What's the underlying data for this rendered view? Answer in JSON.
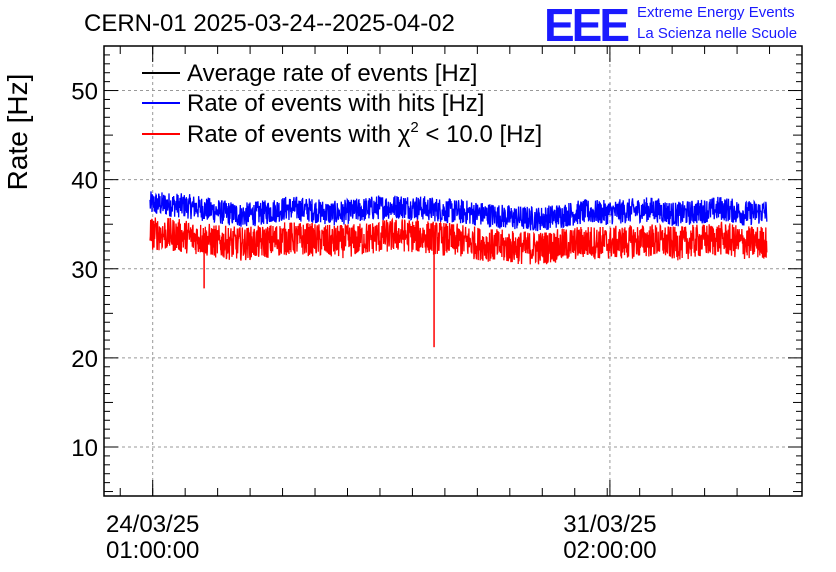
{
  "header": {
    "title": "CERN-01 2025-03-24--2025-04-02",
    "logo_text": "EEE",
    "org_line1": "Extreme Energy Events",
    "org_line2": "La Scienza nelle Scuole"
  },
  "chart_data": {
    "type": "line",
    "ylabel": "Rate [Hz]",
    "ylim": [
      4.5,
      55
    ],
    "xlim": [
      "2025-03-23 07:00",
      "2025-04-03 01:00"
    ],
    "grid": true,
    "yticks": [
      10,
      20,
      30,
      40,
      50
    ],
    "xticks": [
      {
        "date": "24/03/25",
        "time": "01:00:00"
      },
      {
        "date": "31/03/25",
        "time": "02:00:00"
      }
    ],
    "legend": {
      "placement": "top-left",
      "entries": [
        {
          "label": "Average rate of events [Hz]",
          "color": "#000000"
        },
        {
          "label": "Rate of events with hits [Hz]",
          "color": "#0000ff"
        },
        {
          "label_prefix": "Rate of events with ",
          "chi_symbol": "χ",
          "chi_sup": "2",
          "label_suffix": " < 10.0 [Hz]",
          "color": "#ff0000"
        }
      ]
    },
    "series": [
      {
        "name": "Rate of events with hits [Hz]",
        "color": "#0000ff",
        "x_range": [
          "2025-03-24 00:00",
          "2025-04-02 12:00"
        ],
        "trend": [
          37.3,
          37.2,
          36.9,
          36.4,
          36.0,
          36.3,
          36.8,
          36.6,
          36.2,
          36.5,
          36.9,
          37.0,
          36.8,
          36.5,
          36.3,
          36.0,
          35.7,
          35.6,
          36.0,
          36.4,
          36.3,
          36.5,
          36.7,
          36.1,
          36.4,
          36.8,
          36.2,
          36.4
        ],
        "noise_amplitude": 1.4
      },
      {
        "name": "Rate of events with χ2 < 10.0 [Hz]",
        "color": "#ff0000",
        "x_range": [
          "2025-03-24 00:00",
          "2025-04-02 12:00"
        ],
        "trend": [
          34.0,
          33.8,
          33.5,
          33.0,
          32.8,
          33.0,
          33.4,
          33.3,
          33.0,
          33.2,
          33.6,
          33.8,
          33.6,
          33.3,
          33.0,
          32.6,
          32.4,
          32.3,
          32.6,
          33.0,
          32.9,
          33.0,
          33.2,
          32.8,
          33.1,
          33.4,
          32.9,
          33.0
        ],
        "noise_amplitude": 1.9,
        "spikes": [
          {
            "x": "2025-03-24 20:00",
            "y": 27.8
          },
          {
            "x": "2025-03-28 09:00",
            "y": 21.2
          }
        ]
      }
    ]
  }
}
